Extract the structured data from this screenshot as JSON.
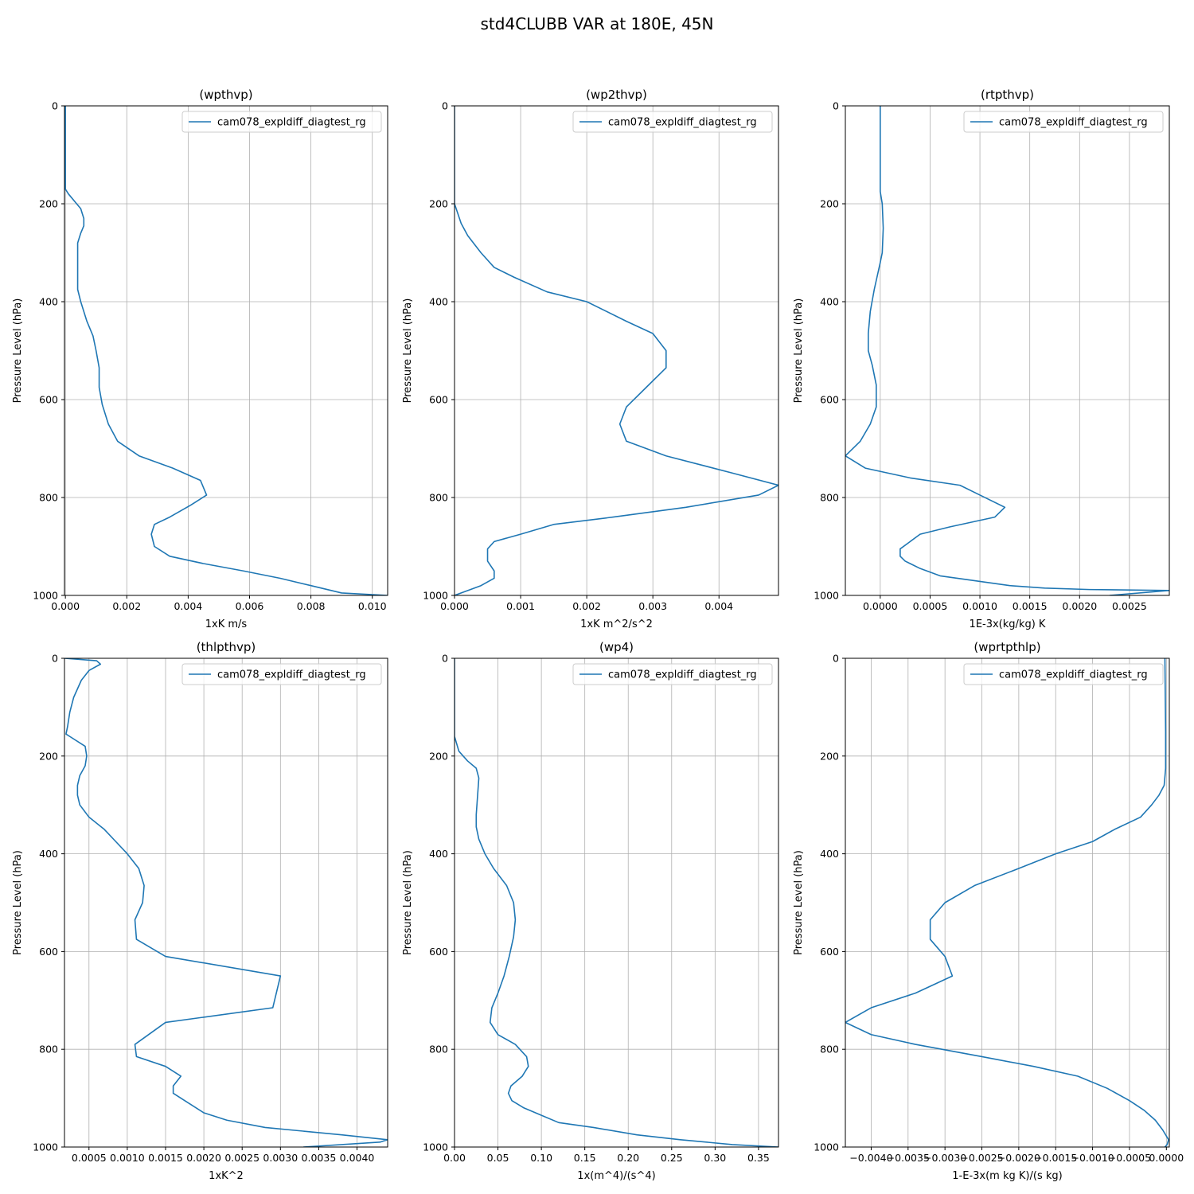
{
  "suptitle": "std4CLUBB VAR at 180E, 45N",
  "ylabel": "Pressure Level (hPa)",
  "chart_data": [
    {
      "type": "line",
      "title": "(wpthvp)",
      "xlabel": "1xK m/s",
      "ylabel": "Pressure Level (hPa)",
      "xlim": [
        -3e-05,
        0.0105
      ],
      "ylim": [
        1000,
        0
      ],
      "xticks": [
        0,
        0.002,
        0.004,
        0.006,
        0.008,
        0.01
      ],
      "xtick_labels": [
        "0.000",
        "0.002",
        "0.004",
        "0.006",
        "0.008",
        "0.010"
      ],
      "yticks": [
        0,
        200,
        400,
        600,
        800,
        1000
      ],
      "ytick_labels": [
        "0",
        "200",
        "400",
        "600",
        "800",
        "1000"
      ],
      "grid": true,
      "legend": "top-right",
      "series": [
        {
          "name": "cam078_expldiff_diagtest_rg",
          "color": "#1f77b4",
          "x": [
            0,
            0,
            0,
            0.0001,
            0.0005,
            0.0006,
            0.0006,
            0.0005,
            0.0004,
            0.0004,
            0.0004,
            0.0004,
            0.0004,
            0.0005,
            0.0007,
            0.0009,
            0.001,
            0.0011,
            0.0011,
            0.0012,
            0.0014,
            0.0017,
            0.0024,
            0.0035,
            0.0044,
            0.0046,
            0.0041,
            0.0034,
            0.0029,
            0.0028,
            0.0029,
            0.0034,
            0.0045,
            0.0058,
            0.007,
            0.008,
            0.009,
            0.0105
          ],
          "y": [
            0,
            50,
            170,
            180,
            210,
            230,
            245,
            260,
            280,
            300,
            325,
            350,
            375,
            400,
            440,
            470,
            500,
            535,
            575,
            610,
            650,
            685,
            715,
            740,
            765,
            795,
            815,
            840,
            855,
            875,
            900,
            920,
            935,
            950,
            965,
            980,
            995,
            1000
          ]
        }
      ]
    },
    {
      "type": "line",
      "title": "(wp2thvp)",
      "xlabel": "1xK m^2/s^2",
      "ylabel": "Pressure Level (hPa)",
      "xlim": [
        0,
        0.0049
      ],
      "ylim": [
        1000,
        0
      ],
      "xticks": [
        0,
        0.001,
        0.002,
        0.003,
        0.004
      ],
      "xtick_labels": [
        "0.000",
        "0.001",
        "0.002",
        "0.003",
        "0.004"
      ],
      "yticks": [
        0,
        200,
        400,
        600,
        800,
        1000
      ],
      "ytick_labels": [
        "0",
        "200",
        "400",
        "600",
        "800",
        "1000"
      ],
      "grid": true,
      "legend": "top-right",
      "series": [
        {
          "name": "cam078_expldiff_diagtest_rg",
          "color": "#1f77b4",
          "x": [
            0,
            0,
            5e-05,
            0.0001,
            0.0002,
            0.0004,
            0.0006,
            0.0009,
            0.0014,
            0.002,
            0.0026,
            0.003,
            0.0032,
            0.0032,
            0.0029,
            0.0026,
            0.0025,
            0.0026,
            0.0032,
            0.0042,
            0.0049,
            0.0046,
            0.0035,
            0.0024,
            0.0015,
            0.001,
            0.0006,
            0.0005,
            0.0005,
            0.0006,
            0.0006,
            0.0004,
            0
          ],
          "y": [
            0,
            200,
            220,
            240,
            265,
            300,
            330,
            350,
            380,
            400,
            440,
            465,
            500,
            535,
            575,
            615,
            650,
            685,
            715,
            750,
            775,
            795,
            820,
            840,
            855,
            875,
            890,
            905,
            930,
            950,
            965,
            980,
            1000
          ]
        }
      ]
    },
    {
      "type": "line",
      "title": "(rtpthvp)",
      "xlabel": "1E-3x(kg/kg) K",
      "ylabel": "Pressure Level (hPa)",
      "xlim": [
        -0.00035,
        0.0029
      ],
      "ylim": [
        1000,
        0
      ],
      "xticks": [
        0,
        0.0005,
        0.001,
        0.0015,
        0.002,
        0.0025
      ],
      "xtick_labels": [
        "0.0000",
        "0.0005",
        "0.0010",
        "0.0015",
        "0.0020",
        "0.0025"
      ],
      "yticks": [
        0,
        200,
        400,
        600,
        800,
        1000
      ],
      "ytick_labels": [
        "0",
        "200",
        "400",
        "600",
        "800",
        "1000"
      ],
      "grid": true,
      "legend": "top-right",
      "series": [
        {
          "name": "cam078_expldiff_diagtest_rg",
          "color": "#1f77b4",
          "x": [
            0,
            0,
            2e-05,
            3e-05,
            2e-05,
            0,
            -6e-05,
            -0.0001,
            -0.00012,
            -0.00012,
            -8e-05,
            -4e-05,
            -4e-05,
            -0.0001,
            -0.0002,
            -0.00035,
            -0.00015,
            0.0003,
            0.0008,
            0.001,
            0.00125,
            0.00115,
            0.0007,
            0.0004,
            0.0003,
            0.0002,
            0.0002,
            0.00025,
            0.0004,
            0.0006,
            0.00095,
            0.0013,
            0.00165,
            0.0021,
            0.0029,
            0.0023
          ],
          "y": [
            0,
            175,
            200,
            250,
            300,
            320,
            375,
            420,
            465,
            500,
            530,
            570,
            615,
            650,
            685,
            715,
            740,
            760,
            775,
            795,
            820,
            840,
            860,
            875,
            890,
            905,
            920,
            930,
            945,
            960,
            970,
            980,
            985,
            988,
            990,
            1000
          ]
        }
      ]
    },
    {
      "type": "line",
      "title": "(thlpthvp)",
      "xlabel": "1xK^2",
      "ylabel": "Pressure Level (hPa)",
      "xlim": [
        0.00018,
        0.0044
      ],
      "ylim": [
        1000,
        0
      ],
      "xticks": [
        0.0005,
        0.001,
        0.0015,
        0.002,
        0.0025,
        0.003,
        0.0035,
        0.004
      ],
      "xtick_labels": [
        "0.0005",
        "0.0010",
        "0.0015",
        "0.0020",
        "0.0025",
        "0.0030",
        "0.0035",
        "0.0040"
      ],
      "yticks": [
        0,
        200,
        400,
        600,
        800,
        1000
      ],
      "ytick_labels": [
        "0",
        "200",
        "400",
        "600",
        "800",
        "1000"
      ],
      "grid": true,
      "legend": "top-right",
      "series": [
        {
          "name": "cam078_expldiff_diagtest_rg",
          "color": "#1f77b4",
          "x": [
            0.00018,
            0.0006,
            0.00065,
            0.0005,
            0.0004,
            0.0003,
            0.00025,
            0.00022,
            0.0002,
            0.00025,
            0.00045,
            0.00047,
            0.00045,
            0.00038,
            0.00035,
            0.00035,
            0.00038,
            0.0005,
            0.0007,
            0.00085,
            0.001,
            0.00115,
            0.00122,
            0.0012,
            0.0011,
            0.00112,
            0.0015,
            0.003,
            0.0029,
            0.0015,
            0.0011,
            0.00112,
            0.0015,
            0.0017,
            0.0016,
            0.0016,
            0.00175,
            0.002,
            0.0023,
            0.0028,
            0.0038,
            0.0044,
            0.0043,
            0.0033
          ],
          "y": [
            0,
            5,
            12,
            25,
            45,
            80,
            110,
            140,
            155,
            160,
            180,
            200,
            220,
            240,
            260,
            280,
            300,
            325,
            350,
            375,
            400,
            430,
            465,
            500,
            535,
            575,
            610,
            650,
            715,
            745,
            790,
            815,
            835,
            855,
            875,
            890,
            905,
            930,
            945,
            960,
            975,
            985,
            990,
            1000
          ]
        }
      ]
    },
    {
      "type": "line",
      "title": "(wp4)",
      "xlabel": "1x(m^4)/(s^4)",
      "ylabel": "Pressure Level (hPa)",
      "xlim": [
        0,
        0.373
      ],
      "ylim": [
        1000,
        0
      ],
      "xticks": [
        0,
        0.05,
        0.1,
        0.15,
        0.2,
        0.25,
        0.3,
        0.35
      ],
      "xtick_labels": [
        "0.00",
        "0.05",
        "0.10",
        "0.15",
        "0.20",
        "0.25",
        "0.30",
        "0.35"
      ],
      "yticks": [
        0,
        200,
        400,
        600,
        800,
        1000
      ],
      "ytick_labels": [
        "0",
        "200",
        "400",
        "600",
        "800",
        "1000"
      ],
      "grid": true,
      "legend": "top-right",
      "series": [
        {
          "name": "cam078_expldiff_diagtest_rg",
          "color": "#1f77b4",
          "x": [
            0,
            0,
            0.005,
            0.015,
            0.025,
            0.028,
            0.027,
            0.026,
            0.025,
            0.025,
            0.028,
            0.035,
            0.045,
            0.06,
            0.068,
            0.07,
            0.068,
            0.063,
            0.057,
            0.05,
            0.043,
            0.041,
            0.05,
            0.07,
            0.083,
            0.085,
            0.078,
            0.065,
            0.062,
            0.066,
            0.08,
            0.1,
            0.12,
            0.16,
            0.21,
            0.26,
            0.32,
            0.373
          ],
          "y": [
            0,
            160,
            190,
            210,
            225,
            245,
            270,
            295,
            320,
            345,
            370,
            400,
            430,
            465,
            500,
            535,
            570,
            610,
            650,
            685,
            715,
            745,
            770,
            790,
            815,
            835,
            855,
            875,
            890,
            905,
            920,
            935,
            950,
            960,
            975,
            985,
            995,
            1000
          ]
        }
      ]
    },
    {
      "type": "line",
      "title": "(wprtpthlp)",
      "xlabel": "1-E-3x(m kg K)/(s kg)",
      "ylabel": "Pressure Level (hPa)",
      "xlim": [
        -0.00435,
        4e-05
      ],
      "ylim": [
        1000,
        0
      ],
      "xticks": [
        -0.004,
        -0.0035,
        -0.003,
        -0.0025,
        -0.002,
        -0.0015,
        -0.001,
        -0.0005,
        0.0
      ],
      "xtick_labels": [
        "−0.0040",
        "−0.0035",
        "−0.0030",
        "−0.0025",
        "−0.0020",
        "−0.0015",
        "−0.0010",
        "−0.0005",
        "0.0000"
      ],
      "yticks": [
        0,
        200,
        400,
        600,
        800,
        1000
      ],
      "ytick_labels": [
        "0",
        "200",
        "400",
        "600",
        "800",
        "1000"
      ],
      "grid": true,
      "legend": "top-right",
      "series": [
        {
          "name": "cam078_expldiff_diagtest_rg",
          "color": "#1f77b4",
          "x": [
            -2e-05,
            -1e-05,
            -1e-05,
            -3e-05,
            -0.0001,
            -0.0002,
            -0.00035,
            -0.0007,
            -0.001,
            -0.0015,
            -0.002,
            -0.0026,
            -0.003,
            -0.0032,
            -0.0032,
            -0.003,
            -0.0029,
            -0.0034,
            -0.004,
            -0.00435,
            -0.004,
            -0.0034,
            -0.0025,
            -0.0018,
            -0.0012,
            -0.0008,
            -0.0005,
            -0.0003,
            -0.00015,
            -5e-05,
            3e-05,
            1e-05,
            -2e-05
          ],
          "y": [
            0,
            150,
            225,
            260,
            280,
            300,
            325,
            350,
            375,
            400,
            430,
            465,
            500,
            535,
            575,
            610,
            650,
            685,
            715,
            745,
            770,
            790,
            815,
            835,
            855,
            880,
            905,
            925,
            945,
            965,
            985,
            995,
            1000
          ]
        }
      ]
    }
  ]
}
